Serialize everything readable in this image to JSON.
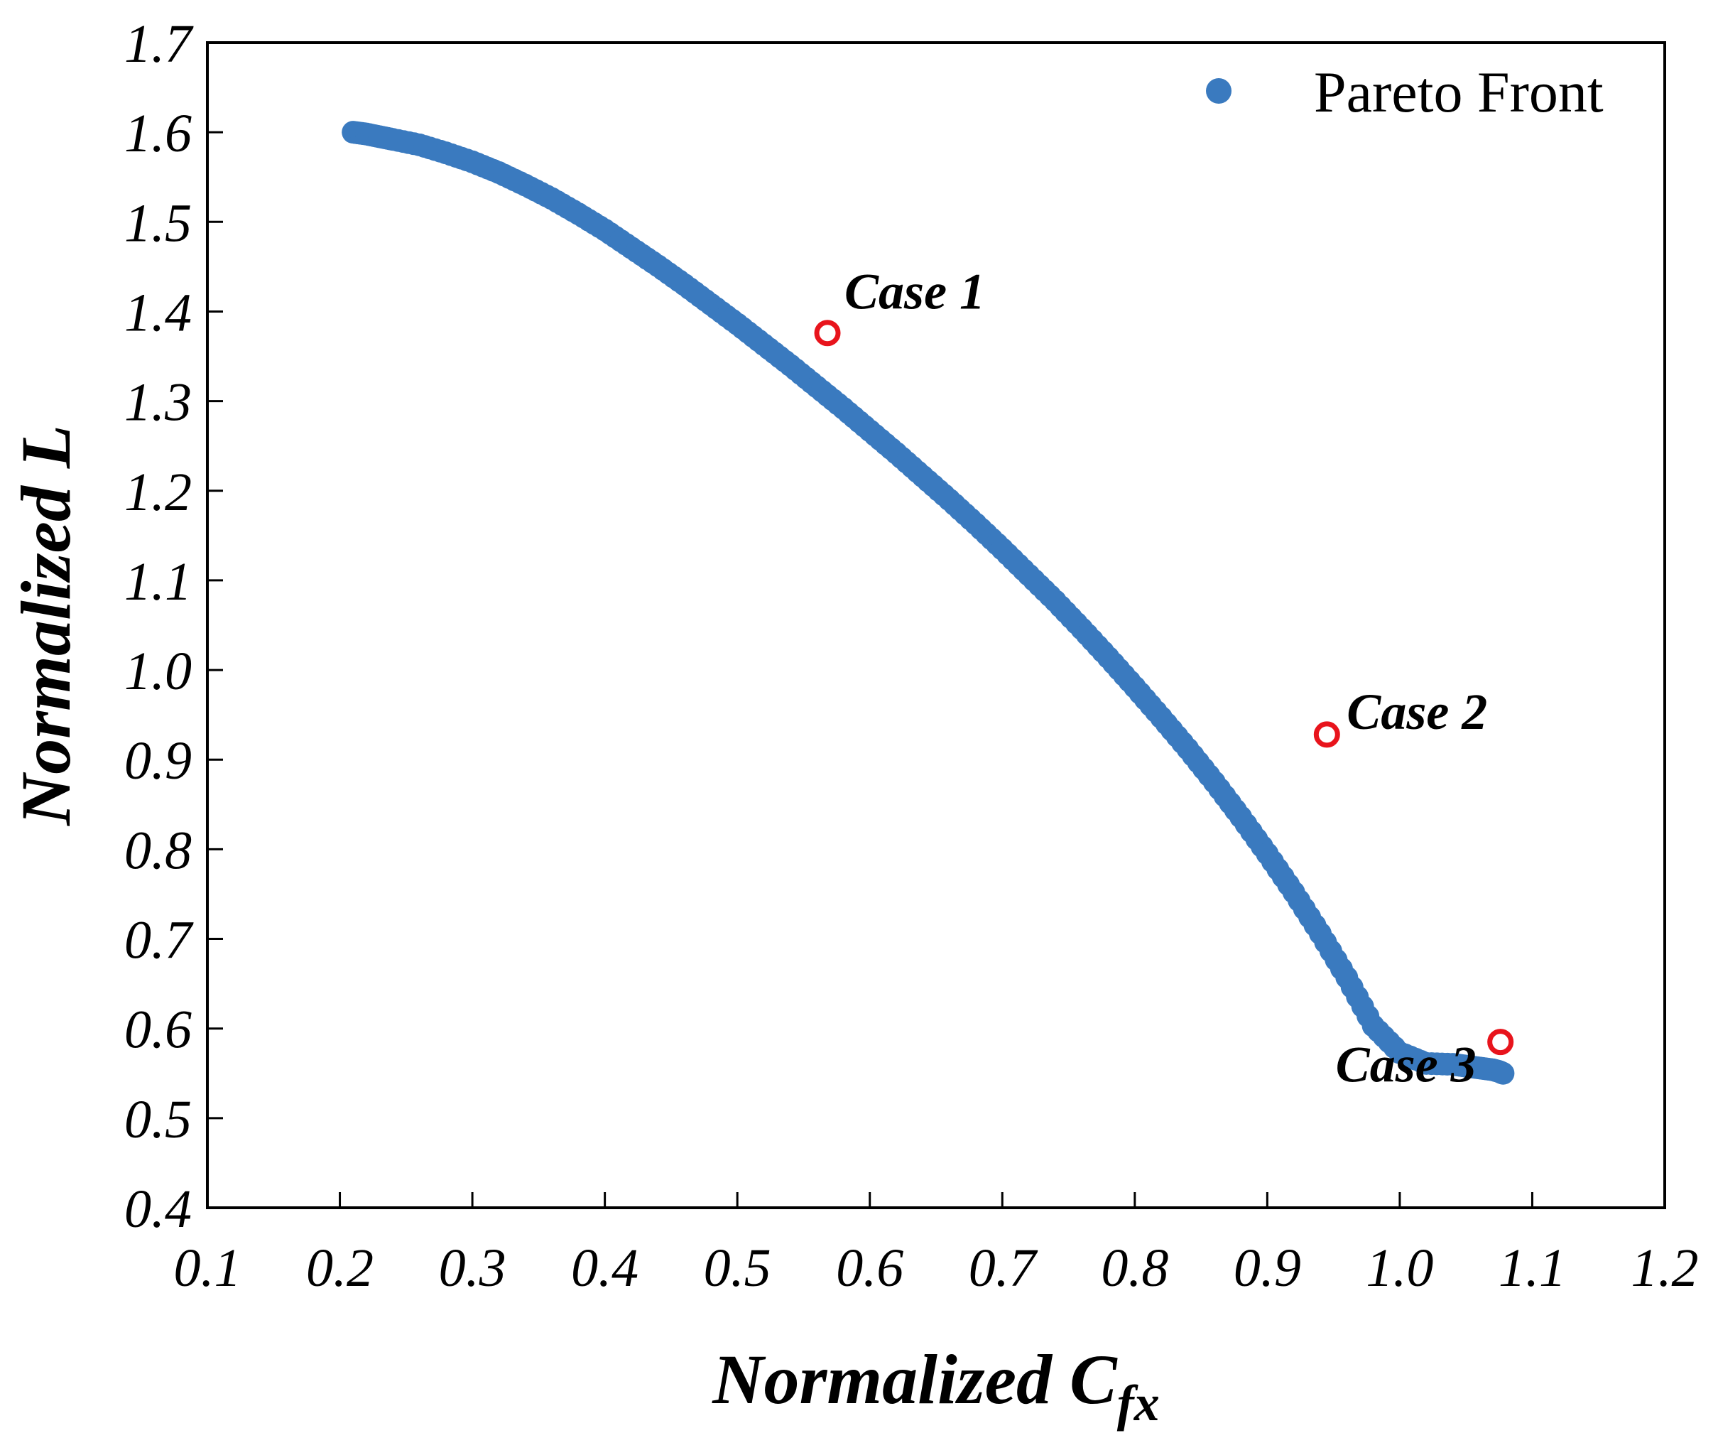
{
  "chart_data": {
    "type": "scatter",
    "title": "",
    "xlabel": "Normalized C",
    "xlabel_subscript": "fx",
    "ylabel": "Normalized L",
    "xlim": [
      0.1,
      1.2
    ],
    "ylim": [
      0.4,
      1.7
    ],
    "x_ticks": [
      "0.1",
      "0.2",
      "0.3",
      "0.4",
      "0.5",
      "0.6",
      "0.7",
      "0.8",
      "0.9",
      "1.0",
      "1.1",
      "1.2"
    ],
    "y_ticks": [
      "0.4",
      "0.5",
      "0.6",
      "0.7",
      "0.8",
      "0.9",
      "1.0",
      "1.1",
      "1.2",
      "1.3",
      "1.4",
      "1.5",
      "1.6",
      "1.7"
    ],
    "grid": false,
    "legend": {
      "position": "top-right",
      "entries": [
        "Pareto Front"
      ]
    },
    "colors": {
      "series": "#3a7abf",
      "highlight": "#e8141c"
    },
    "series": [
      {
        "name": "Pareto Front",
        "x": [
          0.21,
          0.22,
          0.23,
          0.24,
          0.26,
          0.28,
          0.3,
          0.32,
          0.34,
          0.36,
          0.38,
          0.4,
          0.42,
          0.44,
          0.46,
          0.48,
          0.5,
          0.52,
          0.54,
          0.56,
          0.58,
          0.6,
          0.62,
          0.64,
          0.66,
          0.68,
          0.7,
          0.72,
          0.74,
          0.76,
          0.78,
          0.8,
          0.82,
          0.84,
          0.86,
          0.88,
          0.9,
          0.92,
          0.94,
          0.96,
          0.98,
          1.0,
          1.02,
          1.04,
          1.05,
          1.06,
          1.07,
          1.075,
          1.078
        ],
        "y": [
          1.6,
          1.598,
          1.595,
          1.592,
          1.586,
          1.577,
          1.567,
          1.555,
          1.541,
          1.526,
          1.509,
          1.491,
          1.471,
          1.451,
          1.43,
          1.408,
          1.386,
          1.363,
          1.34,
          1.316,
          1.292,
          1.267,
          1.242,
          1.216,
          1.19,
          1.163,
          1.135,
          1.106,
          1.077,
          1.046,
          1.014,
          0.981,
          0.947,
          0.912,
          0.875,
          0.836,
          0.795,
          0.752,
          0.706,
          0.657,
          0.603,
          0.573,
          0.561,
          0.56,
          0.558,
          0.556,
          0.554,
          0.552,
          0.55
        ]
      }
    ],
    "highlights": [
      {
        "label": "Case 1",
        "x": 0.568,
        "y": 1.376
      },
      {
        "label": "Case 2",
        "x": 0.945,
        "y": 0.928
      },
      {
        "label": "Case 3",
        "x": 1.076,
        "y": 0.585
      }
    ]
  }
}
